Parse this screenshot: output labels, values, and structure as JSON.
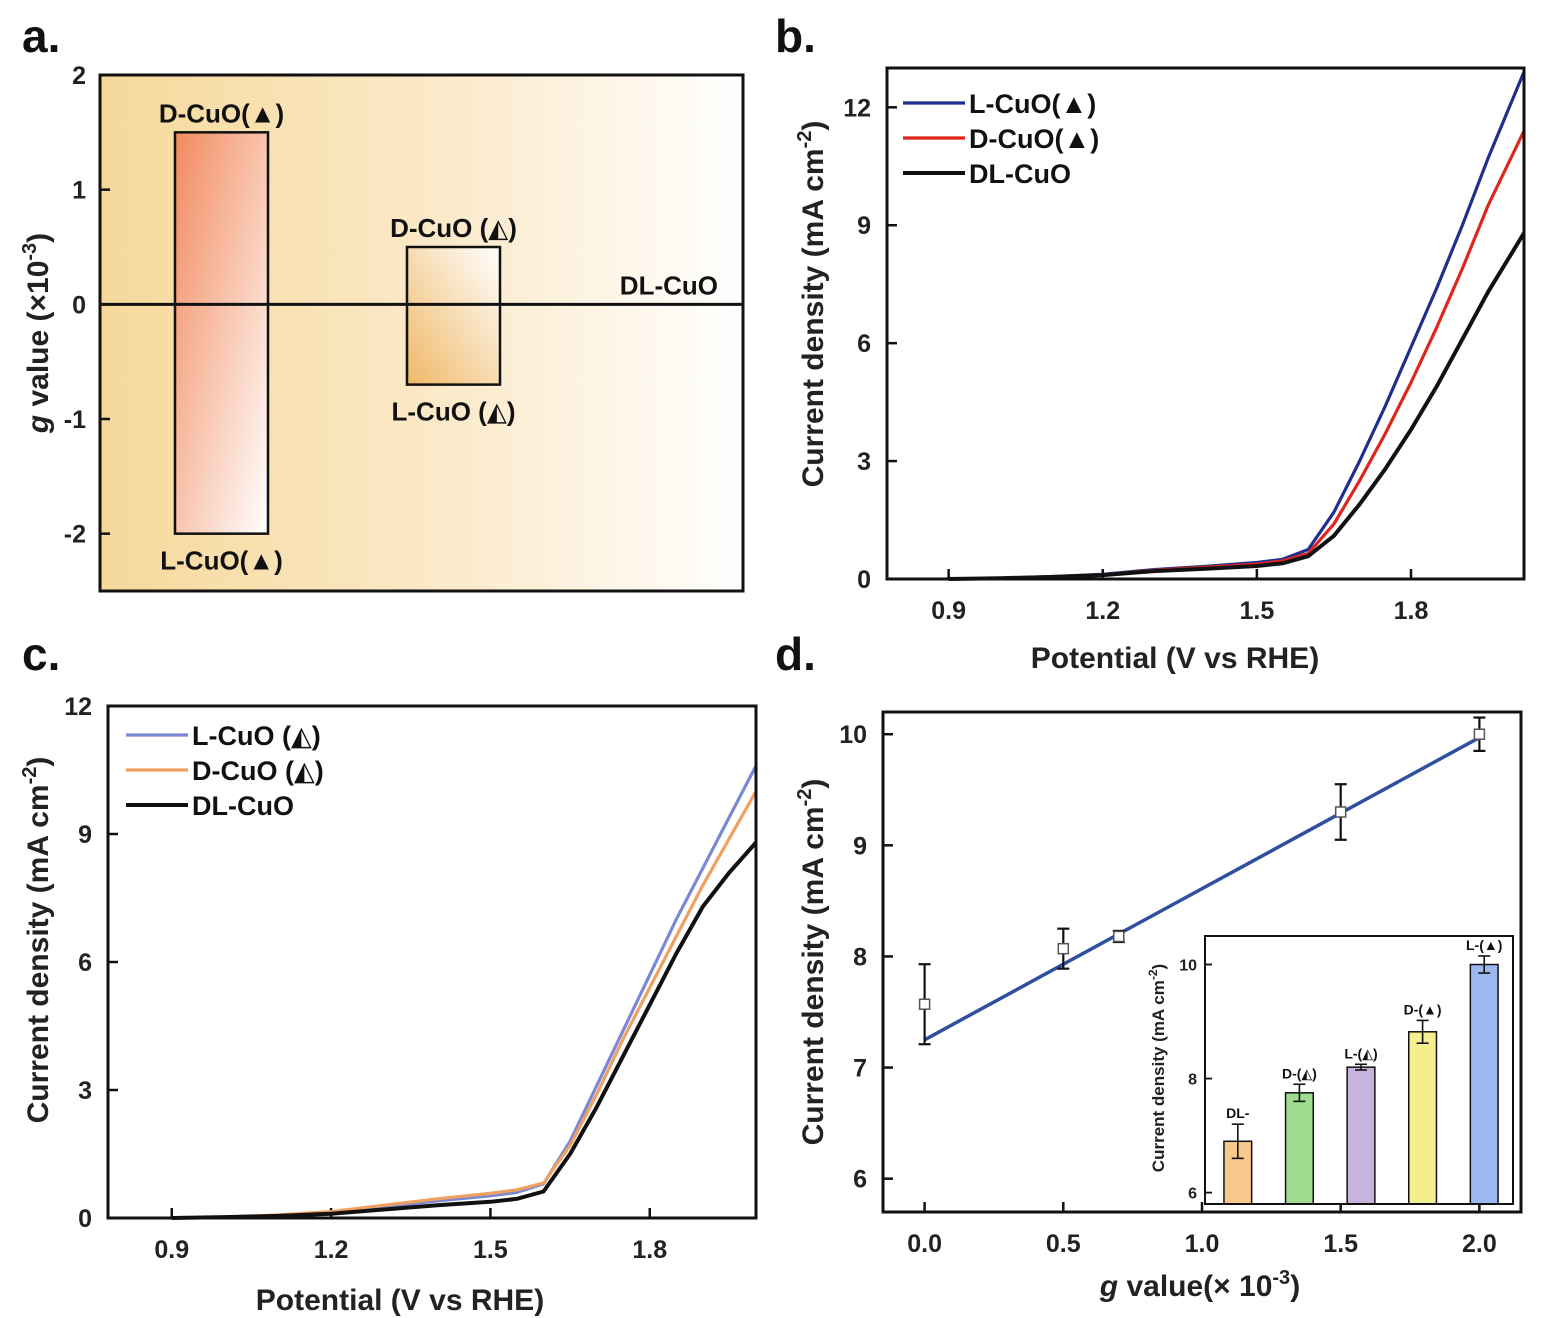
{
  "panels": {
    "a": {
      "label": "a."
    },
    "b": {
      "label": "b."
    },
    "c": {
      "label": "c."
    },
    "d": {
      "label": "d."
    }
  },
  "chart_data": [
    {
      "panel": "a",
      "type": "bar",
      "ylabel_italic": "g",
      "ylabel_rest": " value (×10",
      "ylabel_exp": "-3",
      "ylabel_close": ")",
      "ylim": [
        -2.5,
        2
      ],
      "yticks": [
        "2",
        "1",
        "0",
        "-1",
        "-2"
      ],
      "bars": [
        {
          "low": -2.0,
          "high": 1.5,
          "top_label": "D-CuO(▲)",
          "bottom_label": "L-CuO(▲)",
          "color": "#f4a07a"
        },
        {
          "low": -0.7,
          "high": 0.5,
          "top_label": "D-CuO (◭)",
          "bottom_label": "L-CuO (◭)",
          "color": "#f1c27a"
        }
      ],
      "baseline_label": "DL-CuO"
    },
    {
      "panel": "b",
      "type": "line",
      "xlabel": "Potential (V vs RHE)",
      "ylabel": "Current density (mA cm",
      "ylabel_exp": "-2",
      "ylabel_close": ")",
      "xlim": [
        0.78,
        2.02
      ],
      "ylim": [
        0,
        13
      ],
      "xticks": [
        "0.9",
        "1.2",
        "1.5",
        "1.8"
      ],
      "yticks": [
        "0",
        "3",
        "6",
        "9",
        "12"
      ],
      "legend_position": "top-left",
      "series": [
        {
          "name": "L-CuO(▲)",
          "color": "#1f2f8f",
          "x": [
            0.9,
            1.0,
            1.1,
            1.2,
            1.3,
            1.4,
            1.5,
            1.55,
            1.6,
            1.65,
            1.7,
            1.75,
            1.8,
            1.85,
            1.9,
            1.95,
            2.02
          ],
          "y": [
            0,
            0.02,
            0.06,
            0.12,
            0.24,
            0.32,
            0.42,
            0.5,
            0.75,
            1.7,
            3.0,
            4.4,
            5.9,
            7.4,
            9.0,
            10.7,
            12.9
          ]
        },
        {
          "name": "D-CuO(▲)",
          "color": "#e0261c",
          "x": [
            0.9,
            1.0,
            1.1,
            1.2,
            1.3,
            1.4,
            1.5,
            1.55,
            1.6,
            1.65,
            1.7,
            1.75,
            1.8,
            1.85,
            1.9,
            1.95,
            2.02
          ],
          "y": [
            0,
            0.02,
            0.05,
            0.11,
            0.22,
            0.3,
            0.38,
            0.46,
            0.65,
            1.4,
            2.5,
            3.7,
            5.0,
            6.4,
            7.9,
            9.5,
            11.4
          ]
        },
        {
          "name": "DL-CuO",
          "color": "#111111",
          "x": [
            0.9,
            1.0,
            1.1,
            1.2,
            1.3,
            1.4,
            1.5,
            1.55,
            1.6,
            1.65,
            1.7,
            1.75,
            1.8,
            1.85,
            1.9,
            1.95,
            2.02
          ],
          "y": [
            0,
            0.02,
            0.05,
            0.1,
            0.2,
            0.26,
            0.33,
            0.4,
            0.58,
            1.1,
            1.9,
            2.8,
            3.8,
            4.9,
            6.1,
            7.3,
            8.8
          ]
        }
      ]
    },
    {
      "panel": "c",
      "type": "line",
      "xlabel": "Potential (V vs RHE)",
      "ylabel": "Current density (mA cm",
      "ylabel_exp": "-2",
      "ylabel_close": ")",
      "xlim": [
        0.78,
        2.0
      ],
      "ylim": [
        0,
        12
      ],
      "xticks": [
        "0.9",
        "1.2",
        "1.5",
        "1.8"
      ],
      "yticks": [
        "0",
        "3",
        "6",
        "9",
        "12"
      ],
      "legend_position": "top-left",
      "series": [
        {
          "name": "L-CuO (◭)",
          "color": "#7b88d4",
          "x": [
            0.9,
            1.0,
            1.1,
            1.2,
            1.3,
            1.4,
            1.5,
            1.55,
            1.6,
            1.65,
            1.7,
            1.75,
            1.8,
            1.85,
            1.9,
            1.95,
            2.0
          ],
          "y": [
            0,
            0.02,
            0.06,
            0.13,
            0.26,
            0.4,
            0.52,
            0.6,
            0.8,
            1.8,
            3.1,
            4.4,
            5.7,
            7.0,
            8.2,
            9.4,
            10.6
          ]
        },
        {
          "name": "D-CuO (◭)",
          "color": "#f0a060",
          "x": [
            0.9,
            1.0,
            1.1,
            1.2,
            1.3,
            1.4,
            1.5,
            1.55,
            1.6,
            1.65,
            1.7,
            1.75,
            1.8,
            1.85,
            1.9,
            1.95,
            2.0
          ],
          "y": [
            0,
            0.02,
            0.07,
            0.15,
            0.3,
            0.45,
            0.58,
            0.66,
            0.82,
            1.7,
            2.9,
            4.2,
            5.4,
            6.6,
            7.8,
            8.9,
            10.0
          ]
        },
        {
          "name": "DL-CuO",
          "color": "#111111",
          "x": [
            0.9,
            1.0,
            1.1,
            1.2,
            1.3,
            1.4,
            1.5,
            1.55,
            1.6,
            1.65,
            1.7,
            1.75,
            1.8,
            1.85,
            1.9,
            1.95,
            2.0
          ],
          "y": [
            0,
            0.02,
            0.05,
            0.1,
            0.2,
            0.3,
            0.38,
            0.45,
            0.62,
            1.5,
            2.6,
            3.8,
            5.0,
            6.2,
            7.3,
            8.1,
            8.8
          ]
        }
      ]
    },
    {
      "panel": "d",
      "type": "scatter",
      "xlabel_italic": "g",
      "xlabel_rest": " value(× 10",
      "xlabel_exp": "-3",
      "xlabel_close": ")",
      "ylabel": "Current density (mA cm",
      "ylabel_exp": "-2",
      "ylabel_close": ")",
      "xlim": [
        -0.15,
        2.15
      ],
      "ylim": [
        5.7,
        10.2
      ],
      "xticks": [
        "0.0",
        "0.5",
        "1.0",
        "1.5",
        "2.0"
      ],
      "yticks": [
        "6",
        "7",
        "8",
        "9",
        "10"
      ],
      "points": [
        {
          "x": 0.0,
          "y": 7.57,
          "err": 0.36
        },
        {
          "x": 0.5,
          "y": 8.07,
          "err": 0.18
        },
        {
          "x": 0.7,
          "y": 8.18,
          "err": 0.05
        },
        {
          "x": 1.5,
          "y": 9.3,
          "err": 0.25
        },
        {
          "x": 2.0,
          "y": 10.0,
          "err": 0.15
        }
      ],
      "fit_line": {
        "x": [
          0.0,
          2.0
        ],
        "y": [
          7.25,
          9.97
        ],
        "color": "#2f4f9f"
      },
      "inset": {
        "type": "bar",
        "ylabel": "Current density (mA cm",
        "ylabel_exp": "-2",
        "ylabel_close": ")",
        "ylim": [
          5.8,
          10.5
        ],
        "yticks": [
          "6",
          "8",
          "10"
        ],
        "bars": [
          {
            "label": "DL-",
            "value": 6.9,
            "err": 0.3,
            "color": "#f7c98c"
          },
          {
            "label": "D-(◭)",
            "value": 7.75,
            "err": 0.15,
            "color": "#9fdc8f"
          },
          {
            "label": "L-(◭)",
            "value": 8.2,
            "err": 0.05,
            "color": "#c8b2de"
          },
          {
            "label": "D-(▲)",
            "value": 8.82,
            "err": 0.2,
            "color": "#f4ef8c"
          },
          {
            "label": "L-(▲)",
            "value": 10.0,
            "err": 0.15,
            "color": "#9cb8ee"
          }
        ]
      }
    }
  ]
}
